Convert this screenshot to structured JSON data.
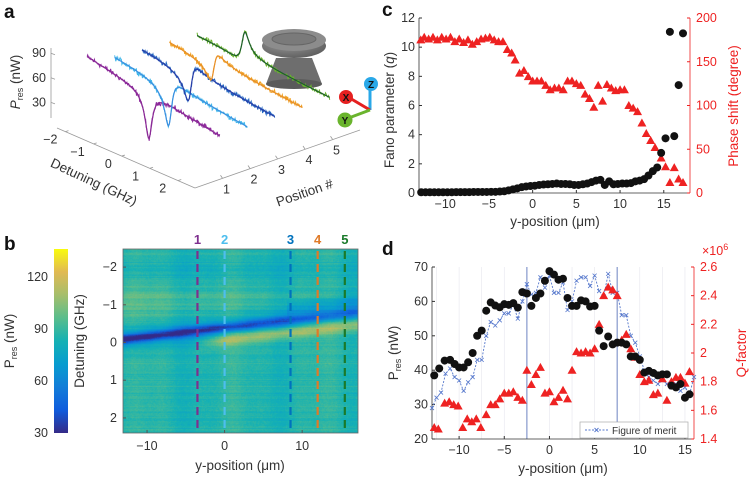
{
  "panel_labels": [
    "a",
    "b",
    "c",
    "d"
  ],
  "colors": {
    "red": "#ee2222",
    "black": "#111111",
    "fom_blue": "#5577cc",
    "positions": [
      "#8e2a9e",
      "#41b8ea",
      "#1f64c0",
      "#f0a020",
      "#6ab42d"
    ],
    "position_fits": [
      "#8a2a96",
      "#3b8fe0",
      "#2a3fa8",
      "#e8902a",
      "#1d5e2a"
    ],
    "dash_colors": [
      "#7e2f8e",
      "#4dbeee",
      "#0072bd",
      "#e07a28",
      "#1a7a2a"
    ]
  },
  "icons": [
    "microresonator-inset-icon",
    "xyz-axes-icon"
  ],
  "chart_data": [
    {
      "panel": "a",
      "type": "line",
      "subtype": "3d-waterfall",
      "zlabel": {
        "main": "P",
        "sub": "res",
        "unit": " (nW)"
      },
      "xlabel": "Detuning (GHz)",
      "ylabel": "Position #",
      "zticks": [
        "90",
        "60",
        "30"
      ],
      "ztick_values": [
        90,
        60,
        30
      ],
      "xticks": [
        "−2",
        "−1",
        "0",
        "1",
        "2"
      ],
      "xtick_values": [
        -2,
        -1,
        0,
        1,
        2
      ],
      "yticks": [
        "1",
        "2",
        "3",
        "4",
        "5"
      ],
      "ytick_values": [
        1,
        2,
        3,
        4,
        5
      ],
      "detuning_range": [
        -2.2,
        2.5
      ],
      "series": [
        {
          "name": "Position 1",
          "position": 1,
          "resonance_GHz": 0.0,
          "q": 0.1,
          "amplitude": 0.85,
          "baseline_start_nW": 78,
          "baseline_slope_nW_per_GHz": 6.0
        },
        {
          "name": "Position 2",
          "position": 2,
          "resonance_GHz": -0.25,
          "q": 0.3,
          "amplitude": 0.85,
          "baseline_start_nW": 67,
          "baseline_slope_nW_per_GHz": 4.0
        },
        {
          "name": "Position 3",
          "position": 3,
          "resonance_GHz": -0.5,
          "q": 0.5,
          "amplitude": 0.6,
          "baseline_start_nW": 65,
          "baseline_slope_nW_per_GHz": 3.5
        },
        {
          "name": "Position 4",
          "position": 4,
          "resonance_GHz": -0.65,
          "q": 0.7,
          "amplitude": 0.4,
          "baseline_start_nW": 62,
          "baseline_slope_nW_per_GHz": 3.0
        },
        {
          "name": "Position 5",
          "position": 5,
          "resonance_GHz": -0.55,
          "q": 2.75,
          "amplitude": 0.075,
          "baseline_start_nW": 57,
          "baseline_slope_nW_per_GHz": 1.8
        }
      ],
      "linewidth_GHz": 0.15,
      "inset_axes": [
        "X",
        "Y",
        "Z"
      ]
    },
    {
      "panel": "b",
      "type": "heatmap",
      "xlabel": "y-position (μm)",
      "ylabel": "Detuning (GHz)",
      "colorbar_label": {
        "main": "P",
        "sub": "res",
        "unit": " (nW)"
      },
      "xlim": [
        -13.1,
        17.2
      ],
      "ylim": [
        -2.48,
        2.4
      ],
      "clim": [
        30,
        136
      ],
      "xticks": [
        "−10",
        "0",
        "10"
      ],
      "xtick_values": [
        -10,
        0,
        10
      ],
      "yticks": [
        "−2",
        "−1",
        "0",
        "1",
        "2"
      ],
      "ytick_values": [
        -2,
        -1,
        0,
        1,
        2
      ],
      "cticks": [
        "120",
        "90",
        "60",
        "30"
      ],
      "ctick_values": [
        120,
        90,
        60,
        30
      ],
      "resonance_line": {
        "detuning_at_-13": -0.1,
        "slope_GHz_per_um": -0.0235
      },
      "markers": [
        {
          "label": "1",
          "x": -3.5
        },
        {
          "label": "2",
          "x": 0
        },
        {
          "label": "3",
          "x": 8.5
        },
        {
          "label": "4",
          "x": 12
        },
        {
          "label": "5",
          "x": 15.5
        }
      ]
    },
    {
      "panel": "c",
      "type": "scatter",
      "xlabel": "y-position (μm)",
      "ylabel": {
        "prefix": "Fano parameter (",
        "var": "q",
        "suffix": ")"
      },
      "y2label": "Phase shift (degree)",
      "xlim": [
        -13,
        18
      ],
      "ylim": [
        0,
        12
      ],
      "y2lim": [
        0,
        200
      ],
      "xticks": [
        "−10",
        "−5",
        "0",
        "5",
        "10",
        "15"
      ],
      "xtick_values": [
        -10,
        -5,
        0,
        5,
        10,
        15
      ],
      "yticks": [
        "0",
        "2",
        "4",
        "6",
        "8",
        "10",
        "12"
      ],
      "ytick_values": [
        0,
        2,
        4,
        6,
        8,
        10,
        12
      ],
      "y2ticks": [
        "0",
        "50",
        "100",
        "150",
        "200"
      ],
      "y2tick_values": [
        0,
        50,
        100,
        150,
        200
      ],
      "series": [
        {
          "name": "Fano parameter",
          "marker": "circle",
          "color": "#111111",
          "x": [
            -12.75,
            -12.25,
            -11.75,
            -11.25,
            -10.75,
            -10.25,
            -9.75,
            -9.25,
            -8.75,
            -8.25,
            -7.75,
            -7.25,
            -6.75,
            -6.25,
            -5.75,
            -5.25,
            -4.75,
            -4.25,
            -3.75,
            -3.25,
            -2.75,
            -2.25,
            -1.75,
            -1.25,
            -0.75,
            -0.25,
            0.25,
            0.75,
            1.25,
            1.75,
            2.25,
            2.75,
            3.25,
            3.75,
            4.25,
            4.75,
            5.25,
            5.75,
            6.25,
            6.75,
            7.25,
            7.75,
            8.25,
            8.75,
            9.25,
            9.75,
            10.25,
            10.75,
            11.25,
            11.75,
            12.25,
            12.75,
            13.25,
            13.75,
            14.25,
            14.7,
            15.2,
            15.7,
            16.2,
            16.7,
            17.2
          ],
          "y": [
            0.05,
            0.05,
            0.05,
            0.05,
            0.05,
            0.05,
            0.05,
            0.05,
            0.06,
            0.06,
            0.06,
            0.06,
            0.07,
            0.07,
            0.07,
            0.07,
            0.08,
            0.08,
            0.1,
            0.12,
            0.18,
            0.25,
            0.32,
            0.4,
            0.45,
            0.48,
            0.5,
            0.55,
            0.58,
            0.6,
            0.62,
            0.65,
            0.62,
            0.62,
            0.6,
            0.55,
            0.55,
            0.6,
            0.65,
            0.75,
            0.85,
            0.9,
            0.55,
            0.8,
            0.6,
            0.62,
            0.65,
            0.65,
            0.68,
            0.8,
            0.85,
            0.95,
            1.2,
            1.5,
            1.75,
            2.75,
            3.75,
            11.05,
            3.9,
            7.4,
            10.95
          ]
        },
        {
          "name": "Phase shift",
          "marker": "triangle",
          "color": "#ee2222",
          "axis": "right",
          "x": [
            -12.8,
            -12.4,
            -11.9,
            -11.4,
            -10.9,
            -10.4,
            -9.9,
            -9.4,
            -8.9,
            -8.4,
            -7.9,
            -7.4,
            -6.9,
            -6.4,
            -5.9,
            -5.4,
            -4.9,
            -4.4,
            -3.9,
            -3.4,
            -2.9,
            -2.4,
            -2.0,
            -1.5,
            -1.0,
            -0.5,
            0.0,
            0.5,
            1.0,
            1.5,
            2.0,
            2.5,
            3.0,
            3.5,
            4.0,
            4.5,
            5.0,
            5.5,
            6.0,
            6.5,
            7.0,
            7.5,
            8.0,
            8.5,
            9.0,
            9.5,
            10.0,
            10.5,
            11.0,
            11.5,
            12.0,
            12.5,
            13.0,
            13.5,
            14.0,
            14.7,
            15.2,
            15.7,
            16.2,
            16.7,
            17.2
          ],
          "y": [
            175,
            178,
            176,
            178,
            175,
            178,
            176,
            178,
            173,
            176,
            172,
            175,
            170,
            173,
            176,
            177,
            178,
            175,
            173,
            173,
            164,
            160,
            152,
            137,
            140,
            133,
            128,
            128,
            128,
            123,
            118,
            120,
            120,
            118,
            128,
            128,
            125,
            123,
            113,
            108,
            98,
            123,
            105,
            124,
            120,
            117,
            118,
            118,
            100,
            97,
            93,
            80,
            68,
            60,
            52,
            40,
            30,
            12,
            29,
            16,
            12
          ]
        }
      ]
    },
    {
      "panel": "d",
      "type": "scatter",
      "xlabel": "y-position (μm)",
      "ylabel": {
        "main": "P",
        "sub": "res",
        "unit": " (nW)"
      },
      "y2label": "Q-factor",
      "y2_exponent": "×10",
      "y2_exponent_power": "6",
      "xlim": [
        -13,
        16
      ],
      "ylim": [
        20,
        70
      ],
      "y2lim": [
        1.4,
        2.6
      ],
      "xticks": [
        "−10",
        "−5",
        "0",
        "5",
        "10",
        "15"
      ],
      "xtick_values": [
        -10,
        -5,
        0,
        5,
        10,
        15
      ],
      "yticks": [
        "20",
        "30",
        "40",
        "50",
        "60",
        "70"
      ],
      "ytick_values": [
        20,
        30,
        40,
        50,
        60,
        70
      ],
      "y2ticks": [
        "1.4",
        "1.6",
        "1.8",
        "2",
        "2.2",
        "2.4",
        "2.6"
      ],
      "y2tick_values": [
        1.4,
        1.6,
        1.8,
        2.0,
        2.2,
        2.4,
        2.6
      ],
      "vlines": [
        -2.5,
        7.5
      ],
      "legend": {
        "label": "Figure of merit",
        "placement": "bottom-right"
      },
      "series": [
        {
          "name": "P_res",
          "marker": "circle",
          "color": "#111111",
          "x": [
            -12.75,
            -12.2,
            -11.6,
            -11,
            -10.5,
            -10,
            -9.5,
            -9,
            -8.5,
            -8,
            -7.5,
            -7,
            -6.5,
            -6,
            -5.5,
            -5,
            -4.5,
            -4,
            -3.5,
            -3,
            -2.5,
            -2,
            -1.5,
            -1,
            -0.5,
            0,
            0.5,
            1,
            1.5,
            2,
            2.5,
            3,
            3.5,
            4,
            4.5,
            5,
            5.5,
            6,
            6.5,
            7,
            7.5,
            8,
            8.5,
            9,
            9.5,
            10,
            10.5,
            11,
            11.5,
            12,
            12.5,
            13,
            13.5,
            14,
            14.5,
            15,
            15.5
          ],
          "y": [
            38.5,
            40.5,
            42.8,
            43,
            41.8,
            40.8,
            40.8,
            42.3,
            45,
            50,
            51.5,
            57.3,
            59.7,
            58.8,
            58.3,
            59.2,
            59,
            59.5,
            58.2,
            62.7,
            62.3,
            58.7,
            61,
            62.3,
            66,
            68.8,
            67.8,
            66.3,
            66.6,
            61,
            58.7,
            58.7,
            60.3,
            60,
            58.5,
            58.7,
            51.5,
            47,
            49.8,
            47.5,
            48,
            48,
            47.5,
            44,
            44,
            43,
            39.3,
            39.8,
            39.2,
            38.5,
            38.8,
            38.8,
            35.5,
            35,
            36,
            32,
            33
          ]
        },
        {
          "name": "Q-factor",
          "marker": "triangle",
          "color": "#ee2222",
          "axis": "right",
          "x": [
            -12.75,
            -12.3,
            -11.6,
            -11.1,
            -10.6,
            -10.1,
            -9.6,
            -9.1,
            -8.6,
            -8.1,
            -7.6,
            -7,
            -6.5,
            -6,
            -5.5,
            -5,
            -4.5,
            -4,
            -3.5,
            -3,
            -2.5,
            -2,
            -1.5,
            -1,
            -0.5,
            0,
            0.5,
            1,
            1.5,
            2,
            2.5,
            3,
            3.5,
            4,
            4.5,
            5,
            5.5,
            6,
            6.5,
            7,
            7.5,
            8,
            8.5,
            9,
            9.5,
            10,
            10.5,
            11,
            11.5,
            12,
            12.5,
            13,
            13.5,
            14,
            14.5,
            15,
            15.5
          ],
          "y": [
            1.48,
            1.47,
            1.65,
            1.66,
            1.64,
            1.63,
            1.48,
            1.54,
            1.52,
            1.54,
            1.48,
            1.57,
            1.64,
            1.64,
            1.68,
            1.72,
            1.72,
            1.73,
            1.69,
            1.67,
            1.88,
            1.78,
            1.85,
            1.9,
            1.72,
            1.73,
            1.66,
            1.69,
            1.74,
            1.68,
            1.88,
            2.01,
            2.0,
            2.01,
            2.0,
            2.03,
            2.2,
            2.4,
            2.46,
            2.44,
            2.4,
            2.09,
            2.13,
            2.03,
            1.97,
            1.85,
            1.8,
            1.81,
            1.71,
            1.72,
            1.82,
            1.67,
            1.8,
            1.83,
            1.83,
            1.79,
            1.87
          ]
        },
        {
          "name": "Figure of merit",
          "marker": "x",
          "line": "dotted",
          "color": "#5577cc",
          "x": [
            -13,
            -12.5,
            -12,
            -11.5,
            -11,
            -10.5,
            -10,
            -9.5,
            -9,
            -8.5,
            -8,
            -7.5,
            -7,
            -6.5,
            -6,
            -5.5,
            -5,
            -4.5,
            -4,
            -3.5,
            -3,
            -2.5,
            -2,
            -1.5,
            -1,
            -0.5,
            0,
            0.5,
            1,
            1.5,
            2,
            2.5,
            3,
            3.5,
            4,
            4.5,
            5,
            5.5,
            6,
            6.5,
            7,
            7.5,
            8,
            8.5,
            9,
            9.5,
            10,
            10.5,
            11,
            11.5,
            12,
            12.5,
            13,
            13.5,
            14,
            14.5,
            15,
            15.5,
            16
          ],
          "y": [
            29,
            32,
            33.5,
            39,
            40.5,
            38,
            37,
            34,
            36.5,
            38,
            43,
            43,
            50,
            54,
            53,
            54.5,
            56.5,
            56.5,
            59,
            55,
            60,
            65,
            62,
            62.5,
            67,
            64,
            67.5,
            62.5,
            62.5,
            65.5,
            57.5,
            60,
            66,
            67,
            67,
            64.5,
            67.5,
            63,
            61.5,
            68,
            62.5,
            62.5,
            56,
            56,
            50,
            48,
            44,
            40,
            38,
            37,
            36,
            37,
            36,
            35,
            36,
            34,
            35,
            33,
            38
          ]
        }
      ]
    }
  ]
}
